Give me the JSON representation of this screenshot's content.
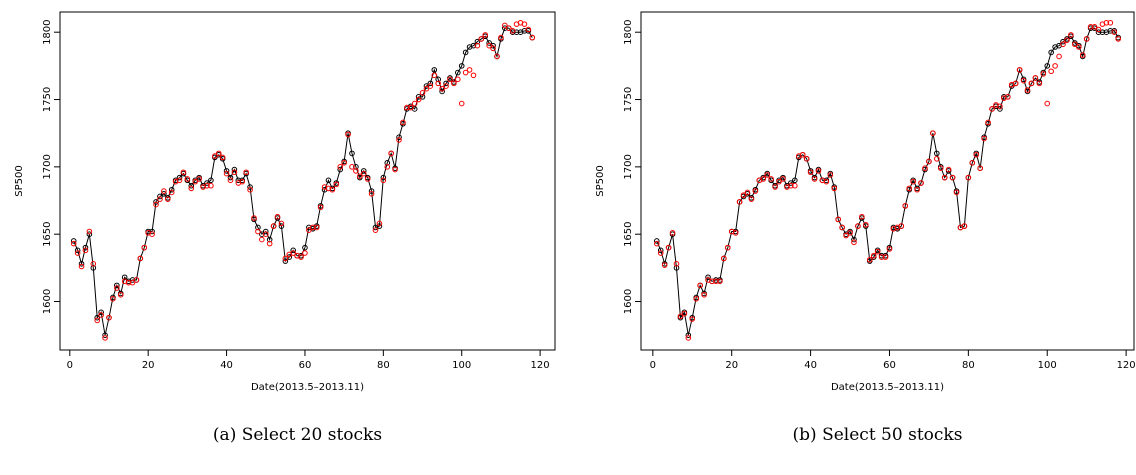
{
  "chart_data": [
    {
      "type": "scatter",
      "caption": "(a) Select 20 stocks",
      "xlabel": "Date(2013.5–2013.11)",
      "ylabel": "SP500",
      "xlim": [
        -2.5,
        123.8
      ],
      "ylim": [
        1564,
        1815
      ],
      "xticks": [
        0,
        20,
        40,
        60,
        80,
        100,
        120
      ],
      "yticks": [
        1600,
        1650,
        1700,
        1750,
        1800
      ],
      "x": [
        1,
        2,
        3,
        4,
        5,
        6,
        7,
        8,
        9,
        10,
        11,
        12,
        13,
        14,
        15,
        16,
        17,
        18,
        19,
        20,
        21,
        22,
        23,
        24,
        25,
        26,
        27,
        28,
        29,
        30,
        31,
        32,
        33,
        34,
        35,
        36,
        37,
        38,
        39,
        40,
        41,
        42,
        43,
        44,
        45,
        46,
        47,
        48,
        49,
        50,
        51,
        52,
        53,
        54,
        55,
        56,
        57,
        58,
        59,
        60,
        61,
        62,
        63,
        64,
        65,
        66,
        67,
        68,
        69,
        70,
        71,
        72,
        73,
        74,
        75,
        76,
        77,
        78,
        79,
        80,
        81,
        82,
        83,
        84,
        85,
        86,
        87,
        88,
        89,
        90,
        91,
        92,
        93,
        94,
        95,
        96,
        97,
        98,
        99,
        100,
        101,
        102,
        103,
        104,
        105,
        106,
        107,
        108,
        109,
        110,
        111,
        112,
        113,
        114,
        115,
        116,
        117,
        118
      ],
      "series": [
        {
          "color": "#000000",
          "line": true,
          "values": [
            1645,
            1638,
            1628,
            1640,
            1650,
            1625,
            1588,
            1592,
            1575,
            1588,
            1603,
            1612,
            1606,
            1618,
            1615,
            1616,
            1616,
            1632,
            1640,
            1652,
            1652,
            1674,
            1678,
            1680,
            1677,
            1683,
            1690,
            1692,
            1695,
            1690,
            1686,
            1690,
            1692,
            1686,
            1688,
            1690,
            1707,
            1709,
            1706,
            1697,
            1692,
            1698,
            1690,
            1690,
            1695,
            1685,
            1661,
            1655,
            1650,
            1652,
            1646,
            1656,
            1662,
            1656,
            1630,
            1633,
            1638,
            1634,
            1634,
            1640,
            1655,
            1654,
            1656,
            1671,
            1683,
            1690,
            1684,
            1688,
            1698,
            1704,
            1725,
            1710,
            1700,
            1692,
            1697,
            1692,
            1682,
            1655,
            1656,
            1692,
            1703,
            1710,
            1699,
            1722,
            1732,
            1743,
            1745,
            1743,
            1752,
            1752,
            1760,
            1762,
            1772,
            1765,
            1756,
            1762,
            1766,
            1763,
            1770,
            1775,
            1785,
            1789,
            1790,
            1793,
            1795,
            1797,
            1792,
            1790,
            1782,
            1795,
            1803,
            1803,
            1800,
            1800,
            1800,
            1801,
            1801,
            1796
          ]
        },
        {
          "color": "#ff0000",
          "line": false,
          "values": [
            1643,
            1636,
            1626,
            1638,
            1652,
            1628,
            1586,
            1590,
            1573,
            1588,
            1602,
            1610,
            1605,
            1615,
            1614,
            1614,
            1616,
            1632,
            1640,
            1651,
            1650,
            1672,
            1676,
            1682,
            1676,
            1681,
            1689,
            1690,
            1696,
            1691,
            1684,
            1689,
            1691,
            1685,
            1686,
            1686,
            1708,
            1710,
            1707,
            1695,
            1690,
            1696,
            1688,
            1689,
            1696,
            1683,
            1662,
            1652,
            1646,
            1650,
            1643,
            1656,
            1663,
            1658,
            1632,
            1635,
            1636,
            1634,
            1633,
            1636,
            1653,
            1655,
            1655,
            1670,
            1685,
            1684,
            1683,
            1687,
            1700,
            1703,
            1724,
            1700,
            1697,
            1693,
            1695,
            1691,
            1680,
            1653,
            1658,
            1690,
            1700,
            1710,
            1698,
            1720,
            1733,
            1744,
            1744,
            1747,
            1750,
            1755,
            1758,
            1760,
            1768,
            1762,
            1758,
            1760,
            1765,
            1762,
            1765,
            1747,
            1770,
            1772,
            1768,
            1790,
            1795,
            1798,
            1790,
            1788,
            1782,
            1796,
            1805,
            1803,
            1801,
            1806,
            1807,
            1806,
            1802,
            1796
          ]
        }
      ]
    },
    {
      "type": "scatter",
      "caption": "(b) Select 50 stocks",
      "xlabel": "Date(2013.5–2013.11)",
      "ylabel": "SP500",
      "xlim": [
        -3,
        122
      ],
      "ylim": [
        1564,
        1815
      ],
      "xticks": [
        0,
        20,
        40,
        60,
        80,
        100,
        120
      ],
      "yticks": [
        1600,
        1650,
        1700,
        1750,
        1800
      ],
      "x": [
        1,
        2,
        3,
        4,
        5,
        6,
        7,
        8,
        9,
        10,
        11,
        12,
        13,
        14,
        15,
        16,
        17,
        18,
        19,
        20,
        21,
        22,
        23,
        24,
        25,
        26,
        27,
        28,
        29,
        30,
        31,
        32,
        33,
        34,
        35,
        36,
        37,
        38,
        39,
        40,
        41,
        42,
        43,
        44,
        45,
        46,
        47,
        48,
        49,
        50,
        51,
        52,
        53,
        54,
        55,
        56,
        57,
        58,
        59,
        60,
        61,
        62,
        63,
        64,
        65,
        66,
        67,
        68,
        69,
        70,
        71,
        72,
        73,
        74,
        75,
        76,
        77,
        78,
        79,
        80,
        81,
        82,
        83,
        84,
        85,
        86,
        87,
        88,
        89,
        90,
        91,
        92,
        93,
        94,
        95,
        96,
        97,
        98,
        99,
        100,
        101,
        102,
        103,
        104,
        105,
        106,
        107,
        108,
        109,
        110,
        111,
        112,
        113,
        114,
        115,
        116,
        117,
        118
      ],
      "series": [
        {
          "color": "#000000",
          "line": true,
          "values": [
            1645,
            1638,
            1628,
            1640,
            1650,
            1625,
            1588,
            1592,
            1575,
            1588,
            1603,
            1612,
            1606,
            1618,
            1615,
            1616,
            1616,
            1632,
            1640,
            1652,
            1652,
            1674,
            1678,
            1680,
            1677,
            1683,
            1690,
            1692,
            1695,
            1690,
            1686,
            1690,
            1692,
            1686,
            1688,
            1690,
            1707,
            1709,
            1706,
            1697,
            1692,
            1698,
            1690,
            1690,
            1695,
            1685,
            1661,
            1655,
            1650,
            1652,
            1646,
            1656,
            1662,
            1656,
            1630,
            1633,
            1638,
            1634,
            1634,
            1640,
            1655,
            1654,
            1656,
            1671,
            1683,
            1690,
            1684,
            1688,
            1698,
            1704,
            1725,
            1710,
            1700,
            1692,
            1697,
            1692,
            1682,
            1655,
            1656,
            1692,
            1703,
            1710,
            1699,
            1722,
            1732,
            1743,
            1745,
            1743,
            1752,
            1752,
            1760,
            1762,
            1772,
            1765,
            1756,
            1762,
            1766,
            1763,
            1770,
            1775,
            1785,
            1789,
            1790,
            1793,
            1795,
            1797,
            1792,
            1790,
            1782,
            1795,
            1803,
            1803,
            1800,
            1800,
            1800,
            1801,
            1801,
            1796
          ]
        },
        {
          "color": "#ff0000",
          "line": false,
          "values": [
            1643,
            1636,
            1627,
            1640,
            1651,
            1628,
            1589,
            1591,
            1573,
            1587,
            1602,
            1612,
            1605,
            1616,
            1615,
            1615,
            1615,
            1632,
            1640,
            1652,
            1651,
            1674,
            1679,
            1681,
            1676,
            1682,
            1690,
            1691,
            1694,
            1691,
            1685,
            1689,
            1691,
            1685,
            1686,
            1686,
            1708,
            1709,
            1706,
            1696,
            1691,
            1697,
            1690,
            1689,
            1694,
            1684,
            1661,
            1655,
            1649,
            1651,
            1644,
            1656,
            1663,
            1657,
            1631,
            1634,
            1637,
            1633,
            1633,
            1639,
            1654,
            1655,
            1656,
            1671,
            1684,
            1689,
            1683,
            1688,
            1699,
            1704,
            1725,
            1706,
            1699,
            1692,
            1698,
            1692,
            1681,
            1655,
            1656,
            1692,
            1703,
            1709,
            1699,
            1721,
            1733,
            1743,
            1746,
            1745,
            1751,
            1752,
            1761,
            1762,
            1772,
            1764,
            1757,
            1762,
            1766,
            1762,
            1769,
            1747,
            1771,
            1775,
            1782,
            1791,
            1794,
            1798,
            1791,
            1789,
            1783,
            1795,
            1804,
            1804,
            1802,
            1806,
            1807,
            1807,
            1800,
            1795
          ]
        }
      ]
    }
  ]
}
